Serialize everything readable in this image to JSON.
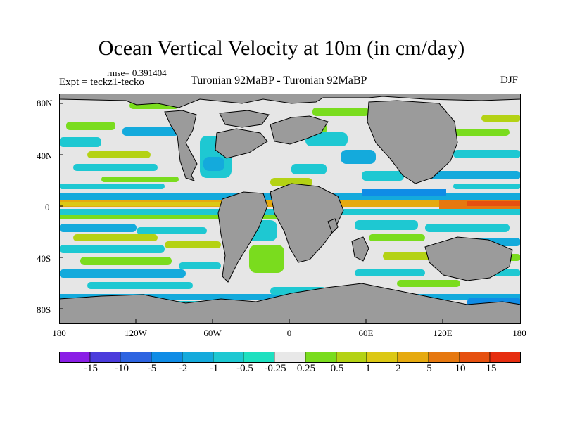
{
  "title": "Ocean Vertical Velocity at 10m (in cm/day)",
  "rmse_label": "rmse= 0.391404",
  "experiment_label": "Expt = teckz1-tecko",
  "comparison_label": "Turonian  92MaBP - Turonian  92MaBP",
  "season_label": "DJF",
  "map": {
    "projection": "Cylindrical Equidistant",
    "region": "Global (180W to 180E, 90S to 90N)",
    "lat_ticks": [
      "80N",
      "40N",
      "0",
      "40S",
      "80S"
    ],
    "lon_ticks": [
      "180",
      "120W",
      "60W",
      "0",
      "60E",
      "120E",
      "180"
    ],
    "colors": {
      "land": "#9b9b9b",
      "ocean_neutral": "#e6e6e6"
    }
  },
  "colorbar": {
    "labels": [
      "-15",
      "-10",
      "-5",
      "-2",
      "-1",
      "-0.5",
      "-0.25",
      "0.25",
      "0.5",
      "1",
      "2",
      "5",
      "10",
      "15"
    ],
    "colors": [
      "#8a1ee6",
      "#4b3cdc",
      "#2d64e1",
      "#0f8ce6",
      "#14aadc",
      "#1ec8d2",
      "#1ee0c0",
      "#e8e8e8",
      "#7adc1e",
      "#b4d214",
      "#dcc814",
      "#e6aa0f",
      "#e6780f",
      "#e6500f",
      "#e62d0f"
    ]
  }
}
